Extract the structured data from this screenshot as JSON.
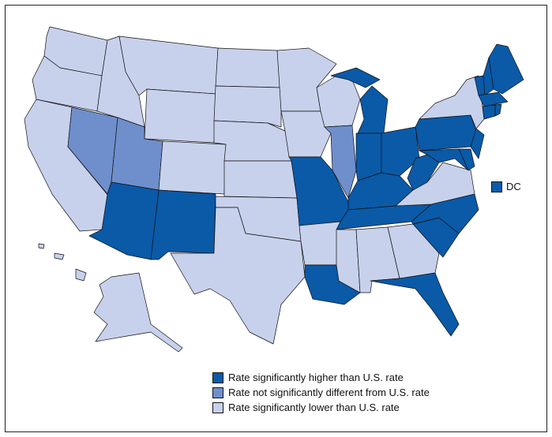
{
  "colors": {
    "higher": "#0a5aa8",
    "not_different": "#6f8fcc",
    "lower": "#c8d1ec"
  },
  "legend": [
    {
      "key": "higher",
      "label": "Rate significantly higher than U.S. rate"
    },
    {
      "key": "not_different",
      "label": "Rate not significantly different from U.S. rate"
    },
    {
      "key": "lower",
      "label": "Rate significantly lower than U.S. rate"
    }
  ],
  "dc": {
    "label": "DC",
    "category": "higher"
  },
  "states": {
    "WA": "lower",
    "OR": "lower",
    "CA": "lower",
    "NV": "not_different",
    "ID": "lower",
    "MT": "lower",
    "WY": "lower",
    "UT": "not_different",
    "CO": "lower",
    "AZ": "higher",
    "NM": "higher",
    "ND": "lower",
    "SD": "lower",
    "NE": "lower",
    "KS": "lower",
    "OK": "lower",
    "TX": "lower",
    "MN": "lower",
    "IA": "lower",
    "MO": "higher",
    "AR": "lower",
    "LA": "higher",
    "WI": "lower",
    "IL": "not_different",
    "MI": "higher",
    "IN": "higher",
    "OH": "higher",
    "KY": "higher",
    "TN": "higher",
    "MS": "lower",
    "AL": "lower",
    "GA": "lower",
    "FL": "higher",
    "SC": "higher",
    "NC": "higher",
    "VA": "lower",
    "WV": "higher",
    "PA": "higher",
    "NY": "lower",
    "NJ": "higher",
    "MD": "higher",
    "DE": "higher",
    "VT": "higher",
    "NH": "higher",
    "ME": "higher",
    "MA": "higher",
    "CT": "higher",
    "RI": "higher",
    "AK": "lower",
    "HI": "lower"
  }
}
